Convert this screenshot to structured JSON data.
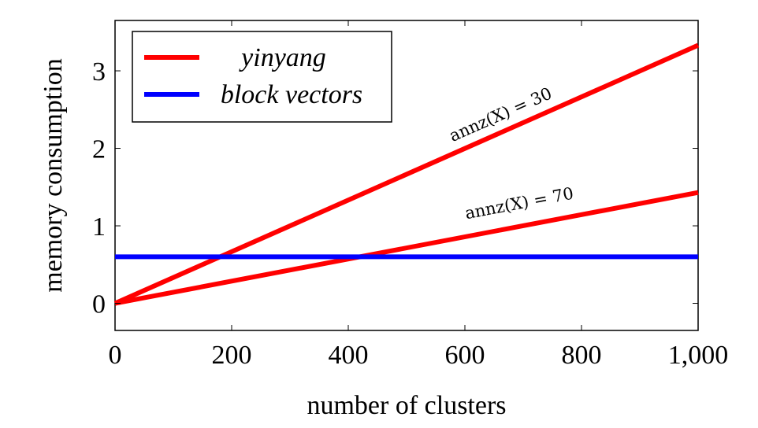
{
  "chart_data": {
    "type": "line",
    "xlabel": "number of clusters",
    "ylabel": "memory consumption",
    "xlim": [
      0,
      1000
    ],
    "ylim": [
      -0.35,
      3.65
    ],
    "xticks": [
      0,
      200,
      400,
      600,
      800,
      1000
    ],
    "xtick_labels": [
      "0",
      "200",
      "400",
      "600",
      "800",
      "1,000"
    ],
    "yticks": [
      0,
      1,
      2,
      3
    ],
    "ytick_labels": [
      "0",
      "1",
      "2",
      "3"
    ],
    "grid": false,
    "legend_position": "top-left",
    "legend": [
      "yinyang",
      "block vectors"
    ],
    "series": [
      {
        "name": "yinyang",
        "color": "#ff0000",
        "x": [
          0,
          1000
        ],
        "y": [
          0,
          3.33
        ]
      },
      {
        "name": "yinyang",
        "color": "#ff0000",
        "x": [
          0,
          1000
        ],
        "y": [
          0,
          1.43
        ]
      },
      {
        "name": "block vectors",
        "color": "#0000ff",
        "x": [
          0,
          1000
        ],
        "y": [
          0.6,
          0.6
        ]
      }
    ],
    "annotations": [
      {
        "text": "annz(X) = 30",
        "x": 665,
        "y": 2.37
      },
      {
        "text": "annz(X) = 70",
        "x": 695,
        "y": 1.22
      }
    ]
  }
}
